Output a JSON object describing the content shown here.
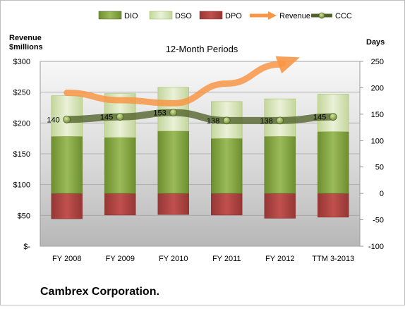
{
  "chart_data": {
    "type": "bar",
    "title": "12-Month Periods",
    "company": "Cambrex Corporation.",
    "left_axis_label_lines": [
      "Revenue",
      "$millions"
    ],
    "right_axis_label": "Days",
    "categories": [
      "FY 2008",
      "FY 2009",
      "FY 2010",
      "FY 2011",
      "FY 2012",
      "TTM 3-2013"
    ],
    "left_axis": {
      "min": 0,
      "max": 300,
      "ticks": [
        300,
        250,
        200,
        150,
        100,
        50,
        0
      ],
      "tick_labels": [
        "$300",
        "$250",
        "$200",
        "$150",
        "$100",
        "$50",
        "$-"
      ]
    },
    "right_axis": {
      "min": -100,
      "max": 250,
      "ticks": [
        250,
        200,
        150,
        100,
        50,
        0,
        -50,
        -100
      ],
      "tick_labels": [
        "250",
        "200",
        "150",
        "100",
        "50",
        "0",
        "-50",
        "-100"
      ]
    },
    "legend": [
      "DIO",
      "DSO",
      "DPO",
      "Revenue",
      "CCC"
    ],
    "legend_position": "top",
    "series": [
      {
        "name": "DIO",
        "axis": "days",
        "color": "#82a53d",
        "values": [
          108,
          106,
          118,
          104,
          108,
          117
        ]
      },
      {
        "name": "DSO",
        "axis": "days",
        "color": "#d7e4a8",
        "values": [
          77,
          83,
          83,
          70,
          71,
          71
        ]
      },
      {
        "name": "DPO",
        "axis": "days",
        "color": "#c0504d",
        "values": [
          -48,
          -41,
          -40,
          -41,
          -47,
          -45
        ]
      },
      {
        "name": "Revenue",
        "axis": "revenue",
        "color": "#f79646",
        "values": [
          249,
          237,
          232,
          264,
          295,
          null
        ]
      },
      {
        "name": "CCC",
        "axis": "days",
        "color": "#4f6228",
        "values": [
          140,
          145,
          153,
          138,
          138,
          145
        ],
        "labels": [
          "140",
          "145",
          "153",
          "138",
          "138",
          "145"
        ]
      }
    ]
  }
}
